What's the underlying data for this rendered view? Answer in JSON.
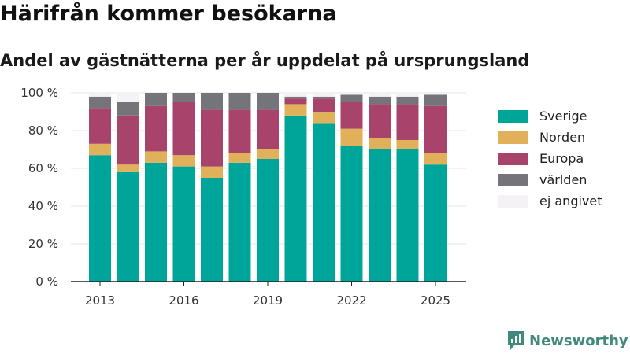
{
  "title": "Härifrån kommer besökarna",
  "subtitle": "Andel av gästnätterna per år uppdelat på ursprungsland",
  "brand": {
    "name": "Newsworthy"
  },
  "chart_data": {
    "type": "bar",
    "stacked": true,
    "categories": [
      "2013",
      "2014",
      "2015",
      "2016",
      "2017",
      "2018",
      "2019",
      "2020",
      "2021",
      "2022",
      "2023",
      "2024",
      "2025"
    ],
    "x_tick_labels": [
      "2013",
      "2016",
      "2019",
      "2022",
      "2025"
    ],
    "y_tick_labels": [
      "0 %",
      "20 %",
      "40 %",
      "60 %",
      "80 %",
      "100 %"
    ],
    "ylim": [
      0,
      100
    ],
    "grid": true,
    "legend_position": "right",
    "series": [
      {
        "name": "Sverige",
        "color": "#00a59a",
        "values": [
          67,
          58,
          63,
          61,
          55,
          63,
          65,
          88,
          84,
          72,
          70,
          70,
          62
        ]
      },
      {
        "name": "Norden",
        "color": "#e0b05a",
        "values": [
          6,
          4,
          6,
          6,
          6,
          5,
          5,
          6,
          6,
          9,
          6,
          5,
          6
        ]
      },
      {
        "name": "Europa",
        "color": "#a8436b",
        "values": [
          19,
          26,
          24,
          28,
          30,
          23,
          21,
          3,
          7,
          14,
          18,
          19,
          25
        ]
      },
      {
        "name": "världen",
        "color": "#75747a",
        "values": [
          6,
          7,
          7,
          5,
          9,
          9,
          9,
          1,
          1,
          4,
          4,
          4,
          6
        ]
      },
      {
        "name": "ej angivet",
        "color": "#f4f2f4",
        "values": [
          2,
          5,
          0,
          0,
          0,
          0,
          0,
          2,
          2,
          1,
          2,
          2,
          1
        ]
      }
    ]
  }
}
